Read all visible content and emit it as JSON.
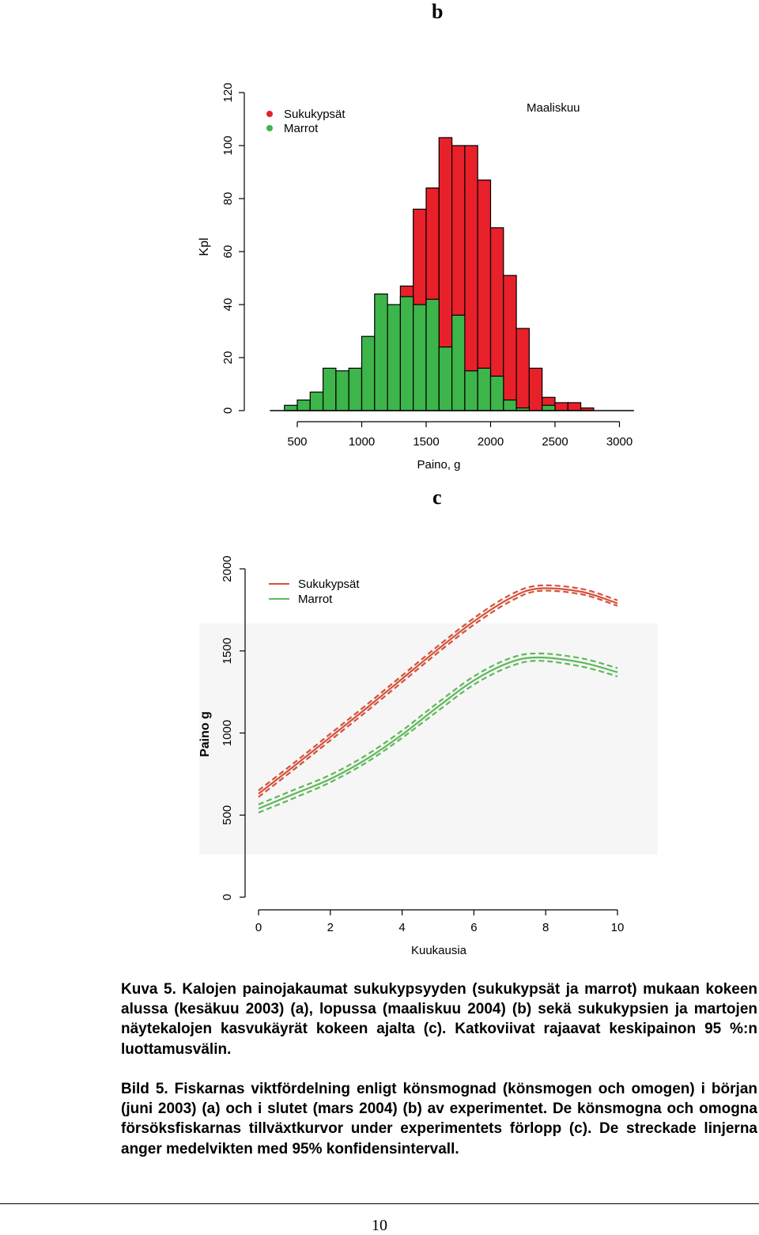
{
  "panels": {
    "b_label": "b",
    "c_label": "c"
  },
  "chart_data": [
    {
      "type": "bar",
      "subtype": "histogram-overlaid",
      "title": "Maaliskuu",
      "xlabel": "Paino, g",
      "ylabel": "Kpl",
      "xlim": [
        300,
        3100
      ],
      "ylim": [
        0,
        120
      ],
      "x_ticks": [
        "500",
        "1000",
        "1500",
        "2000",
        "2500",
        "3000"
      ],
      "y_ticks": [
        "0",
        "20",
        "40",
        "60",
        "80",
        "100",
        "120"
      ],
      "bin_width": 100,
      "bin_starts": [
        300,
        400,
        500,
        600,
        700,
        800,
        900,
        1000,
        1100,
        1200,
        1300,
        1400,
        1500,
        1600,
        1700,
        1800,
        1900,
        2000,
        2100,
        2200,
        2300,
        2400,
        2500,
        2600,
        2700,
        2800,
        2900
      ],
      "legend": {
        "position": "top-left",
        "marker": "dot"
      },
      "series": [
        {
          "name": "Sukukypsät",
          "color": "#e8202a",
          "values": [
            0,
            0,
            1,
            3,
            3,
            4,
            10,
            18,
            13,
            30,
            47,
            76,
            84,
            103,
            100,
            100,
            87,
            69,
            51,
            31,
            16,
            5,
            3,
            3,
            1,
            0,
            0
          ]
        },
        {
          "name": "Marrot",
          "color": "#3db54a",
          "values": [
            0,
            2,
            4,
            7,
            16,
            15,
            16,
            28,
            44,
            40,
            43,
            40,
            42,
            24,
            36,
            15,
            16,
            13,
            4,
            1,
            0,
            2,
            0,
            0,
            0,
            0,
            0
          ]
        }
      ]
    },
    {
      "type": "line",
      "xlabel": "Kuukausia",
      "ylabel": "Paino g",
      "xlim": [
        0,
        10
      ],
      "ylim": [
        0,
        2000
      ],
      "x_ticks": [
        "0",
        "2",
        "4",
        "6",
        "8",
        "10"
      ],
      "y_ticks": [
        "0",
        "500",
        "1000",
        "1500",
        "2000"
      ],
      "legend": {
        "position": "top-left",
        "marker": "line"
      },
      "x": [
        0,
        1,
        2,
        3,
        4,
        5,
        6,
        7,
        7.8,
        9,
        10
      ],
      "series": [
        {
          "name": "Sukukypsät",
          "color": "#d6513a",
          "style": "solid",
          "values": [
            630,
            800,
            975,
            1150,
            1330,
            1510,
            1680,
            1820,
            1880,
            1860,
            1790
          ],
          "ci_lower": [
            610,
            780,
            955,
            1130,
            1310,
            1490,
            1660,
            1800,
            1865,
            1845,
            1775
          ],
          "ci_upper": [
            650,
            820,
            995,
            1170,
            1350,
            1530,
            1700,
            1840,
            1898,
            1878,
            1808
          ]
        },
        {
          "name": "Marrot",
          "color": "#5fb85a",
          "style": "solid",
          "values": [
            540,
            630,
            720,
            840,
            990,
            1160,
            1320,
            1430,
            1460,
            1430,
            1370
          ],
          "ci_lower": [
            515,
            605,
            700,
            820,
            970,
            1135,
            1295,
            1405,
            1440,
            1405,
            1345
          ],
          "ci_upper": [
            565,
            655,
            745,
            865,
            1015,
            1185,
            1345,
            1455,
            1485,
            1455,
            1395
          ]
        }
      ]
    }
  ],
  "caption": {
    "fi": "Kuva 5. Kalojen painojakaumat sukukypsyyden (sukukypsät ja marrot) mukaan kokeen alussa (kesäkuu 2003) (a), lopussa (maaliskuu 2004) (b) sekä sukukypsien ja martojen näytekalojen kasvukäyrät kokeen ajalta (c). Katkoviivat rajaavat keskipainon 95 %:n luottamusvälin.",
    "sv": "Bild 5. Fiskarnas viktfördelning enligt könsmognad (könsmogen och omogen) i början (juni 2003) (a) och i slutet (mars 2004) (b) av experimentet. De könsmogna och omogna försöksfiskarnas tillväxtkurvor under experimentets förlopp (c). De streckade linjerna anger medelvikten med 95% konfidensintervall."
  },
  "page_number": "10"
}
